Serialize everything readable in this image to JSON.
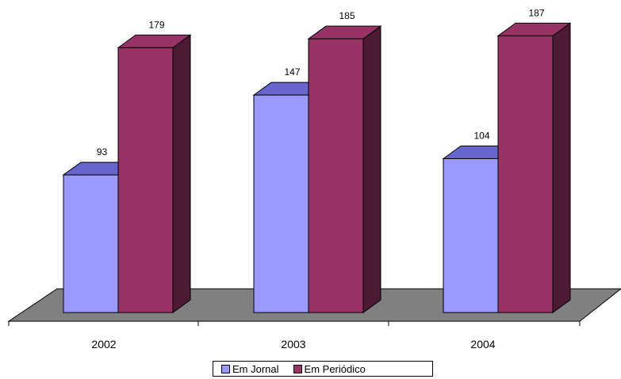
{
  "chart_data": {
    "type": "bar",
    "categories": [
      "2002",
      "2003",
      "2004"
    ],
    "series": [
      {
        "name": "Em Jornal",
        "values": [
          93,
          147,
          104
        ],
        "color": "#9999ff"
      },
      {
        "name": "Em Periódico",
        "values": [
          179,
          185,
          187
        ],
        "color": "#993366"
      }
    ],
    "data_labels": true,
    "ylim": [
      0,
      187
    ],
    "grid": false,
    "legend_position": "bottom",
    "style": "3d-column",
    "floor_color": "#808080"
  }
}
